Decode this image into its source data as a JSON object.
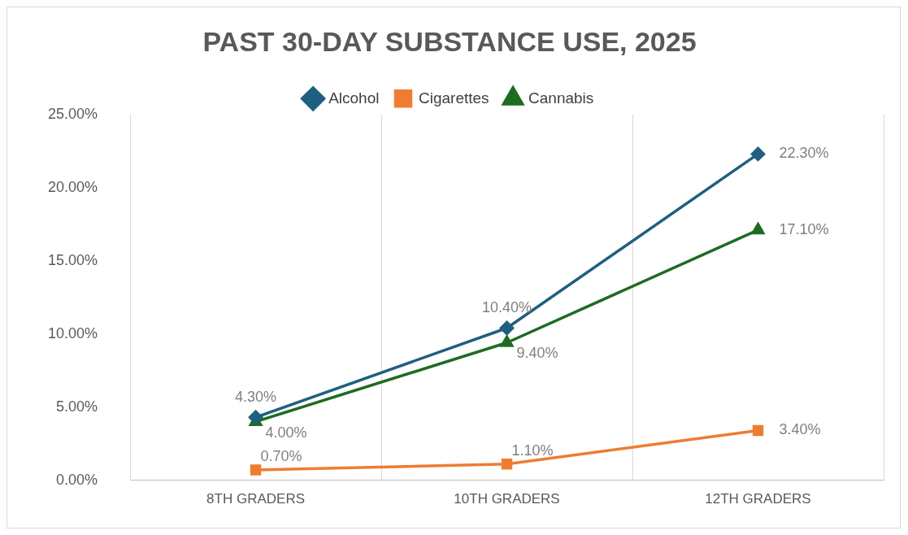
{
  "chart_data": {
    "type": "line",
    "title": "PAST 30-DAY SUBSTANCE USE, 2025",
    "categories": [
      "8TH GRADERS",
      "10TH GRADERS",
      "12TH GRADERS"
    ],
    "series": [
      {
        "name": "Alcohol",
        "color": "#1f5f7f",
        "values": [
          4.3,
          10.4,
          22.3
        ],
        "marker": "diamond",
        "value_labels": [
          "4.30%",
          "10.40%",
          "22.30%"
        ]
      },
      {
        "name": "Cigarettes",
        "color": "#ed7d31",
        "values": [
          0.7,
          1.1,
          3.4
        ],
        "marker": "square",
        "value_labels": [
          "0.70%",
          "1.10%",
          "3.40%"
        ]
      },
      {
        "name": "Cannabis",
        "color": "#1e6b22",
        "values": [
          4.0,
          9.4,
          17.1
        ],
        "marker": "triangle",
        "value_labels": [
          "4.00%",
          "9.40%",
          "17.10%"
        ]
      }
    ],
    "ylim": [
      0,
      25
    ],
    "yticks": [
      {
        "value": 0,
        "label": "0.00%"
      },
      {
        "value": 5,
        "label": "5.00%"
      },
      {
        "value": 10,
        "label": "10.00%"
      },
      {
        "value": 15,
        "label": "15.00%"
      },
      {
        "value": 20,
        "label": "20.00%"
      },
      {
        "value": 25,
        "label": "25.00%"
      }
    ],
    "grid": "x",
    "legend": "top",
    "line_style": "solid"
  }
}
